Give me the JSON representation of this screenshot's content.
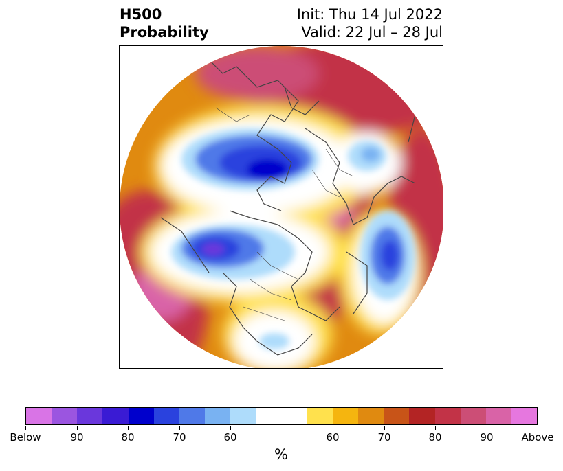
{
  "header": {
    "title_line1": "H500",
    "title_line2": "Probability",
    "init_text": "Init: Thu 14 Jul 2022",
    "valid_text": "Valid: 22 Jul – 28 Jul"
  },
  "map": {
    "projection": "north-polar-stereographic",
    "features": [
      "coastlines",
      "country-borders",
      "us-state-borders"
    ]
  },
  "colorbar": {
    "unit_label": "%",
    "colors": [
      "#d974e6",
      "#9b55e0",
      "#6a37dc",
      "#3a1bd4",
      "#0000cc",
      "#2a42de",
      "#4f79e8",
      "#79b2f2",
      "#aedcfb",
      "#ffffff",
      "#ffffff",
      "#ffe14d",
      "#f5b50f",
      "#e08a10",
      "#c85418",
      "#b32424",
      "#c23347",
      "#cc4e76",
      "#d963a7",
      "#e677df"
    ],
    "tick_labels": [
      "Below",
      "90",
      "80",
      "70",
      "60",
      "60",
      "70",
      "80",
      "90",
      "Above"
    ]
  }
}
